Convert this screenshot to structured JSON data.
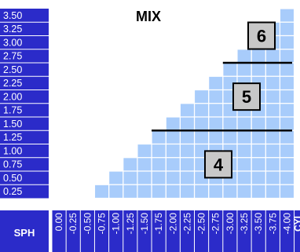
{
  "chart_data": {
    "type": "heatmap",
    "title": "MIX",
    "row_axis_label": "SPH",
    "col_axis_label": "CYL",
    "rows": [
      "3.50",
      "3.25",
      "3.00",
      "2.75",
      "2.50",
      "2.25",
      "2.00",
      "1.75",
      "1.50",
      "1.25",
      "1.00",
      "0.75",
      "0.50",
      "0.25"
    ],
    "cols": [
      "0.00",
      "-0.25",
      "-0.50",
      "-0.75",
      "-1.00",
      "-1.25",
      "-1.50",
      "-1.75",
      "-2.00",
      "-2.25",
      "-2.50",
      "-2.75",
      "-3.00",
      "-3.25",
      "-3.50",
      "-3.75",
      "-4.00"
    ],
    "filled_cells_per_row": [
      1,
      2,
      3,
      4,
      5,
      6,
      7,
      8,
      9,
      10,
      11,
      12,
      13,
      14
    ],
    "zones": [
      {
        "label": "6",
        "sph_min": 2.75,
        "sph_max": 3.5
      },
      {
        "label": "5",
        "sph_min": 1.5,
        "sph_max": 2.5
      },
      {
        "label": "4",
        "sph_min": 0.25,
        "sph_max": 1.25
      }
    ],
    "colors": {
      "axis_bg": "#2b2bc9",
      "axis_text": "#ffffff",
      "cell_fill": "#a8ccfb",
      "badge_fill": "#c8c8c8",
      "divider": "#000000"
    }
  }
}
